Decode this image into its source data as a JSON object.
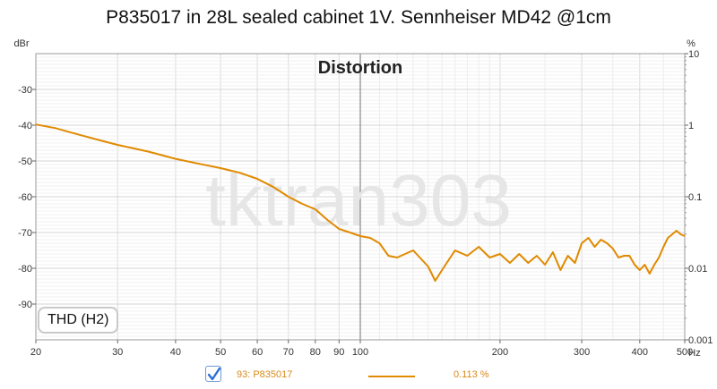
{
  "chart_data": {
    "type": "line",
    "title": "P835017 in 28L sealed cabinet 1V. Sennheiser MD42 @1cm",
    "subtitle": "Distortion",
    "xlabel": "Hz",
    "ylabel_left": "dBr",
    "ylabel_right": "%",
    "x_scale": "log",
    "xlim": [
      20,
      500
    ],
    "ylim": [
      -100,
      -20
    ],
    "y_right_scale": "log",
    "y_right_lim": [
      0.001,
      10
    ],
    "grid": true,
    "x_ticks": [
      {
        "value": 20,
        "label": "20"
      },
      {
        "value": 30,
        "label": "30"
      },
      {
        "value": 40,
        "label": "40"
      },
      {
        "value": 50,
        "label": "50"
      },
      {
        "value": 60,
        "label": "60"
      },
      {
        "value": 70,
        "label": "70"
      },
      {
        "value": 80,
        "label": "80"
      },
      {
        "value": 90,
        "label": "90"
      },
      {
        "value": 100,
        "label": "100"
      },
      {
        "value": 200,
        "label": "200"
      },
      {
        "value": 300,
        "label": "300"
      },
      {
        "value": 400,
        "label": "400"
      },
      {
        "value": 500,
        "label": "500"
      }
    ],
    "y_ticks_left": [
      {
        "value": -30,
        "label": "-30"
      },
      {
        "value": -40,
        "label": "-40"
      },
      {
        "value": -50,
        "label": "-50"
      },
      {
        "value": -60,
        "label": "-60"
      },
      {
        "value": -70,
        "label": "-70"
      },
      {
        "value": -80,
        "label": "-80"
      },
      {
        "value": -90,
        "label": "-90"
      }
    ],
    "y_ticks_right": [
      {
        "value": 10,
        "label": "10"
      },
      {
        "value": 1,
        "label": "1"
      },
      {
        "value": 0.1,
        "label": "0.1"
      },
      {
        "value": 0.01,
        "label": "0.01"
      },
      {
        "value": 0.001,
        "label": "0.001"
      }
    ],
    "series": [
      {
        "name": "93: P835017",
        "color": "#e08a00",
        "x": [
          20,
          22,
          25,
          28,
          30,
          35,
          40,
          45,
          50,
          55,
          60,
          65,
          70,
          75,
          80,
          85,
          90,
          95,
          100,
          105,
          110,
          115,
          120,
          130,
          140,
          145,
          150,
          160,
          170,
          180,
          190,
          200,
          210,
          220,
          230,
          240,
          250,
          260,
          270,
          280,
          290,
          300,
          310,
          320,
          330,
          340,
          350,
          360,
          370,
          380,
          390,
          400,
          410,
          420,
          430,
          440,
          450,
          460,
          470,
          480,
          490,
          500
        ],
        "y": [
          -39.8,
          -40.8,
          -42.8,
          -44.5,
          -45.5,
          -47.4,
          -49.4,
          -50.8,
          -52.0,
          -53.3,
          -55.0,
          -57.3,
          -60.0,
          -62.0,
          -63.5,
          -66.5,
          -69.0,
          -70.0,
          -71.0,
          -71.5,
          -73.0,
          -76.5,
          -77.0,
          -75.0,
          -79.5,
          -83.5,
          -80.5,
          -75.0,
          -76.5,
          -74.0,
          -77.0,
          -76.0,
          -78.5,
          -76.0,
          -78.5,
          -76.5,
          -79.0,
          -75.5,
          -80.5,
          -76.5,
          -78.5,
          -73.0,
          -71.5,
          -74.0,
          -72.0,
          -73.0,
          -74.5,
          -77.0,
          -76.5,
          -76.5,
          -79.0,
          -80.5,
          -79.0,
          -81.5,
          -79.0,
          -77.0,
          -74.0,
          -71.5,
          -70.5,
          -69.5,
          -70.5,
          -71.0
        ]
      }
    ]
  },
  "watermark": "tktran303",
  "badge": "THD (H2)",
  "legend": {
    "checkbox_checked": true,
    "series_label": "93: P835017",
    "value": "0.113 %"
  }
}
